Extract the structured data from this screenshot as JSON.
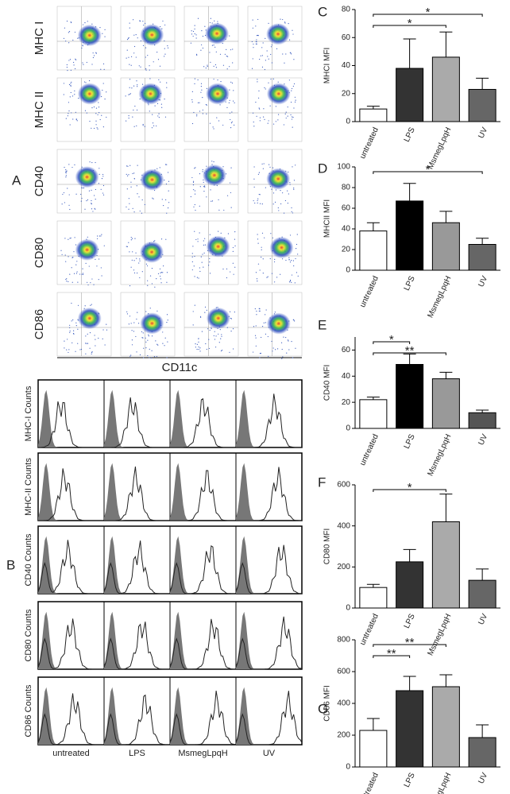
{
  "panel_a": {
    "label": "A",
    "rows": [
      "MHC I",
      "MHC II",
      "CD40",
      "CD80",
      "CD86"
    ],
    "x_label": "CD11c"
  },
  "panel_b": {
    "label": "B",
    "rows": [
      "MHC-I Counts",
      "MHC-II Counts",
      "CD40 Counts",
      "CD80 Counts",
      "CD86 Counts"
    ],
    "categories": [
      "untreated",
      "LPS",
      "MsmegLpqH",
      "UV"
    ]
  },
  "chart_data": [
    {
      "type": "bar",
      "panel": "C",
      "y_label": "MHCI MFI",
      "categories": [
        "untreated",
        "LPS",
        "MsmegLpqH",
        "UV"
      ],
      "values": [
        9,
        38,
        46,
        23
      ],
      "errors": [
        2,
        21,
        18,
        8
      ],
      "colors": [
        "#ffffff",
        "#333333",
        "#aaaaaa",
        "#666666"
      ],
      "ylim": [
        0,
        80
      ],
      "yticks": [
        0,
        20,
        40,
        60,
        80
      ],
      "significance": [
        {
          "label": "*",
          "from": "untreated",
          "to": "UV"
        },
        {
          "label": "*",
          "from": "untreated",
          "to": "MsmegLpqH"
        }
      ]
    },
    {
      "type": "bar",
      "panel": "D",
      "y_label": "MHCII MFI",
      "categories": [
        "untreated",
        "LPS",
        "MsmegLpqH",
        "UV"
      ],
      "values": [
        38,
        67,
        46,
        25
      ],
      "errors": [
        8,
        17,
        11,
        6
      ],
      "colors": [
        "#ffffff",
        "#000000",
        "#999999",
        "#666666"
      ],
      "ylim": [
        0,
        100
      ],
      "yticks": [
        0,
        20,
        40,
        60,
        80,
        100
      ],
      "significance": [
        {
          "label": "*",
          "from": "untreated",
          "to": "UV"
        }
      ]
    },
    {
      "type": "bar",
      "panel": "E",
      "y_label": "CD40 MFI",
      "categories": [
        "untreated",
        "LPS",
        "MsmegLpqH",
        "UV"
      ],
      "values": [
        22,
        49,
        38,
        12
      ],
      "errors": [
        2,
        8,
        5,
        2
      ],
      "colors": [
        "#ffffff",
        "#000000",
        "#999999",
        "#555555"
      ],
      "ylim": [
        0,
        70
      ],
      "yticks": [
        0,
        20,
        40,
        60
      ],
      "significance": [
        {
          "label": "*",
          "from": "untreated",
          "to": "LPS"
        },
        {
          "label": "**",
          "from": "untreated",
          "to": "MsmegLpqH"
        }
      ]
    },
    {
      "type": "bar",
      "panel": "F",
      "y_label": "CD80 MFI",
      "categories": [
        "untreated",
        "LPS",
        "MsmegLpqH",
        "UV"
      ],
      "values": [
        100,
        225,
        420,
        135
      ],
      "errors": [
        15,
        60,
        135,
        55
      ],
      "colors": [
        "#ffffff",
        "#333333",
        "#aaaaaa",
        "#666666"
      ],
      "ylim": [
        0,
        600
      ],
      "yticks": [
        0,
        200,
        400,
        600
      ],
      "significance": [
        {
          "label": "*",
          "from": "untreated",
          "to": "MsmegLpqH"
        }
      ]
    },
    {
      "type": "bar",
      "panel": "G",
      "y_label": "CD86 MFI",
      "categories": [
        "untreated",
        "LPS",
        "MsmegLpqH",
        "UV"
      ],
      "values": [
        230,
        480,
        505,
        185
      ],
      "errors": [
        75,
        90,
        75,
        80
      ],
      "colors": [
        "#ffffff",
        "#333333",
        "#aaaaaa",
        "#666666"
      ],
      "ylim": [
        0,
        800
      ],
      "yticks": [
        0,
        200,
        400,
        600,
        800
      ],
      "significance": [
        {
          "label": "**",
          "from": "untreated",
          "to": "MsmegLpqH"
        },
        {
          "label": "**",
          "from": "untreated",
          "to": "LPS"
        }
      ]
    }
  ]
}
